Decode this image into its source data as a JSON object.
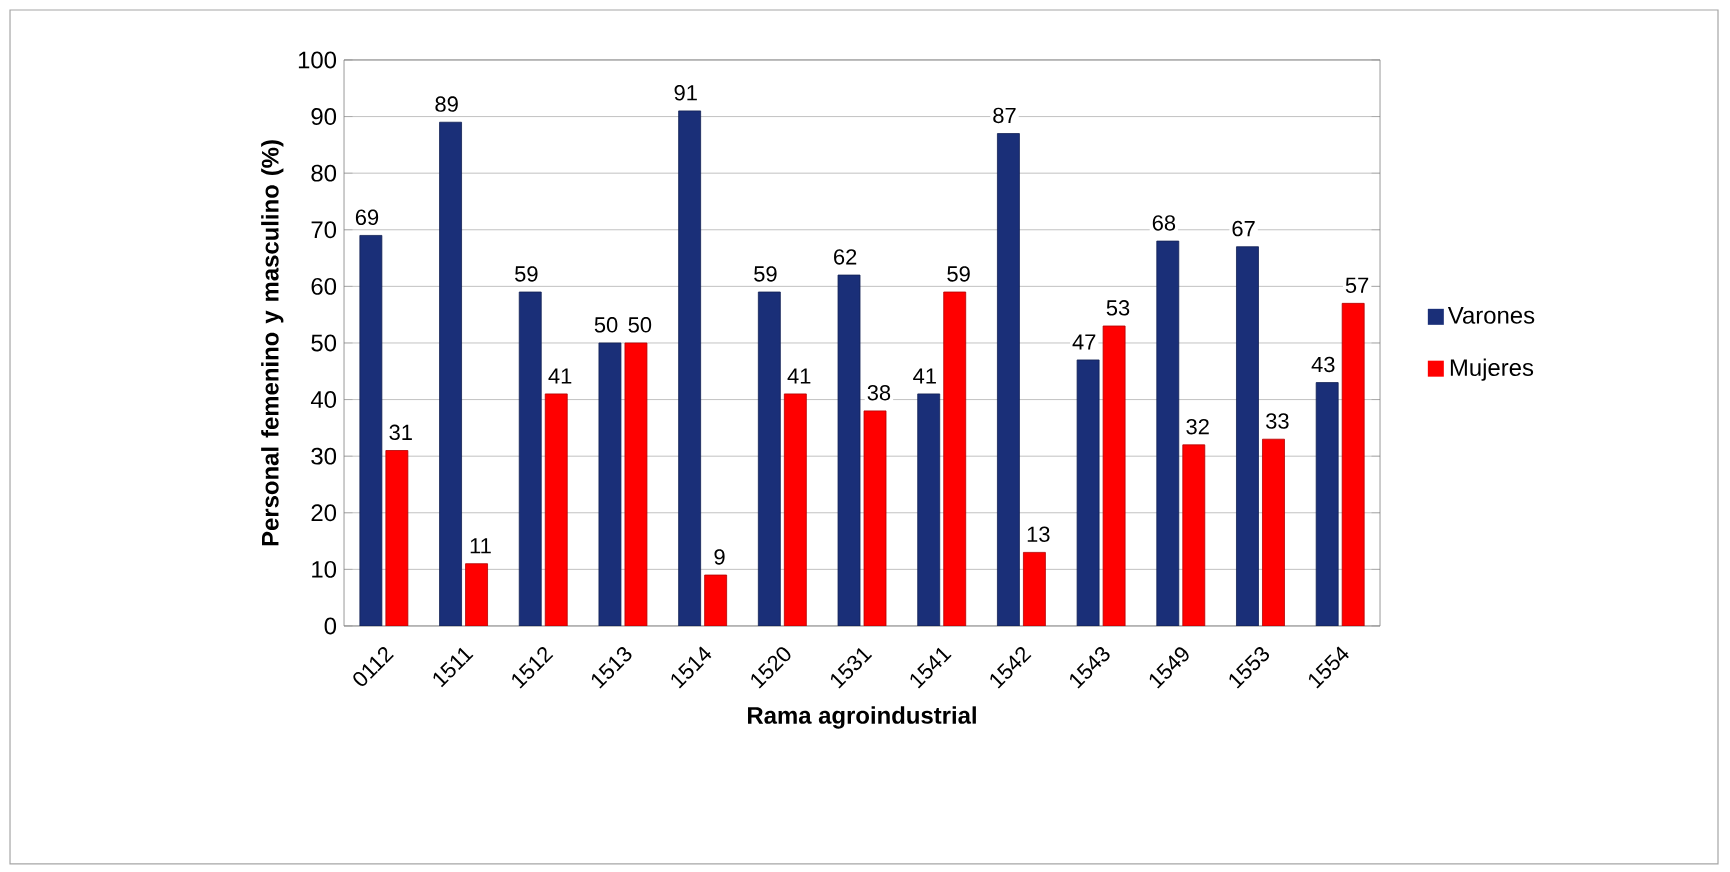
{
  "chart_data": {
    "type": "bar",
    "xlabel": "Rama agroindustrial",
    "ylabel": "Personal femenino y masculino (%)",
    "categories": [
      "0112",
      "1511",
      "1512",
      "1513",
      "1514",
      "1520",
      "1531",
      "1541",
      "1542",
      "1543",
      "1549",
      "1553",
      "1554"
    ],
    "series": [
      {
        "name": "Varones",
        "color": "#1a2f78",
        "values": [
          69,
          89,
          59,
          50,
          91,
          59,
          62,
          41,
          87,
          47,
          68,
          67,
          43
        ]
      },
      {
        "name": "Mujeres",
        "color": "#ff0000",
        "values": [
          31,
          11,
          41,
          50,
          9,
          41,
          38,
          59,
          13,
          53,
          32,
          33,
          57
        ]
      }
    ],
    "ylim": [
      0,
      100
    ],
    "yticks": [
      0,
      10,
      20,
      30,
      40,
      50,
      60,
      70,
      80,
      90,
      100
    ],
    "grid": "y",
    "legend": "right",
    "data_labels": true
  }
}
